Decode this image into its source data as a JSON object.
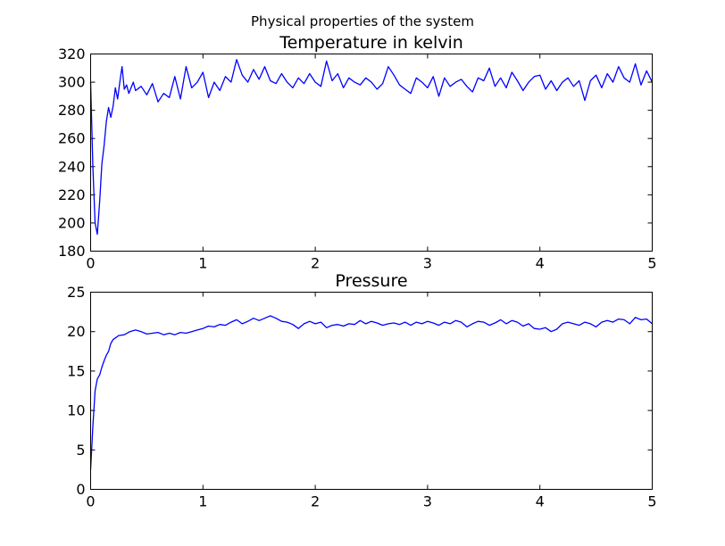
{
  "figure": {
    "suptitle": "Physical properties of the system",
    "line_color": "#0000ff"
  },
  "chart_data": [
    {
      "type": "line",
      "title": "Temperature in kelvin",
      "xlabel": "",
      "ylabel": "",
      "xlim": [
        0,
        5
      ],
      "ylim": [
        180,
        320
      ],
      "xticks": [
        "0",
        "1",
        "2",
        "3",
        "4",
        "5"
      ],
      "yticks": [
        "180",
        "200",
        "220",
        "240",
        "260",
        "280",
        "300",
        "320"
      ],
      "grid": false,
      "series": [
        {
          "x": [
            0,
            0.02,
            0.04,
            0.06,
            0.08,
            0.1,
            0.12,
            0.14,
            0.16,
            0.18,
            0.2,
            0.22,
            0.24,
            0.26,
            0.28,
            0.3,
            0.32,
            0.34,
            0.36,
            0.38,
            0.4,
            0.45,
            0.5,
            0.55,
            0.6,
            0.65,
            0.7,
            0.75,
            0.8,
            0.85,
            0.9,
            0.95,
            1.0,
            1.05,
            1.1,
            1.15,
            1.2,
            1.25,
            1.3,
            1.35,
            1.4,
            1.45,
            1.5,
            1.55,
            1.6,
            1.65,
            1.7,
            1.75,
            1.8,
            1.85,
            1.9,
            1.95,
            2.0,
            2.05,
            2.1,
            2.15,
            2.2,
            2.25,
            2.3,
            2.35,
            2.4,
            2.45,
            2.5,
            2.55,
            2.6,
            2.65,
            2.7,
            2.75,
            2.8,
            2.85,
            2.9,
            2.95,
            3.0,
            3.05,
            3.1,
            3.15,
            3.2,
            3.25,
            3.3,
            3.35,
            3.4,
            3.45,
            3.5,
            3.55,
            3.6,
            3.65,
            3.7,
            3.75,
            3.8,
            3.85,
            3.9,
            3.95,
            4.0,
            4.05,
            4.1,
            4.15,
            4.2,
            4.25,
            4.3,
            4.35,
            4.4,
            4.45,
            4.5,
            4.55,
            4.6,
            4.65,
            4.7,
            4.75,
            4.8,
            4.85,
            4.9,
            4.95,
            5.0
          ],
          "y": [
            300,
            240,
            200,
            192,
            215,
            242,
            255,
            272,
            282,
            275,
            283,
            296,
            288,
            300,
            311,
            295,
            298,
            292,
            296,
            300,
            294,
            297,
            291,
            299,
            286,
            292,
            289,
            304,
            288,
            311,
            296,
            300,
            307,
            289,
            300,
            294,
            304,
            300,
            316,
            305,
            300,
            309,
            302,
            311,
            301,
            299,
            306,
            300,
            296,
            303,
            299,
            306,
            300,
            297,
            315,
            301,
            306,
            296,
            303,
            300,
            298,
            303,
            300,
            295,
            299,
            311,
            305,
            298,
            295,
            292,
            303,
            300,
            296,
            304,
            290,
            303,
            297,
            300,
            302,
            297,
            293,
            303,
            301,
            310,
            297,
            303,
            296,
            307,
            301,
            294,
            300,
            304,
            305,
            295,
            301,
            294,
            300,
            303,
            297,
            301,
            287,
            301,
            305,
            296,
            306,
            300,
            311,
            303,
            300,
            313,
            298,
            308,
            300
          ]
        }
      ]
    },
    {
      "type": "line",
      "title": "Pressure",
      "xlabel": "",
      "ylabel": "",
      "xlim": [
        0,
        5
      ],
      "ylim": [
        0,
        25
      ],
      "xticks": [
        "0",
        "1",
        "2",
        "3",
        "4",
        "5"
      ],
      "yticks": [
        "0",
        "5",
        "10",
        "15",
        "20",
        "25"
      ],
      "grid": false,
      "series": [
        {
          "x": [
            0,
            0.02,
            0.04,
            0.06,
            0.08,
            0.1,
            0.12,
            0.14,
            0.16,
            0.18,
            0.2,
            0.22,
            0.25,
            0.3,
            0.35,
            0.4,
            0.45,
            0.5,
            0.55,
            0.6,
            0.65,
            0.7,
            0.75,
            0.8,
            0.85,
            0.9,
            0.95,
            1.0,
            1.05,
            1.1,
            1.15,
            1.2,
            1.25,
            1.3,
            1.35,
            1.4,
            1.45,
            1.5,
            1.55,
            1.6,
            1.65,
            1.7,
            1.75,
            1.8,
            1.85,
            1.9,
            1.95,
            2.0,
            2.05,
            2.1,
            2.15,
            2.2,
            2.25,
            2.3,
            2.35,
            2.4,
            2.45,
            2.5,
            2.55,
            2.6,
            2.65,
            2.7,
            2.75,
            2.8,
            2.85,
            2.9,
            2.95,
            3.0,
            3.05,
            3.1,
            3.15,
            3.2,
            3.25,
            3.3,
            3.35,
            3.4,
            3.45,
            3.5,
            3.55,
            3.6,
            3.65,
            3.7,
            3.75,
            3.8,
            3.85,
            3.9,
            3.95,
            4.0,
            4.05,
            4.1,
            4.15,
            4.2,
            4.25,
            4.3,
            4.35,
            4.4,
            4.45,
            4.5,
            4.55,
            4.6,
            4.65,
            4.7,
            4.75,
            4.8,
            4.85,
            4.9,
            4.95,
            5.0
          ],
          "y": [
            2.5,
            8.0,
            12.5,
            14.0,
            14.5,
            15.5,
            16.3,
            17.0,
            17.5,
            18.5,
            19.0,
            19.2,
            19.5,
            19.6,
            20.0,
            20.2,
            20.0,
            19.7,
            19.8,
            19.9,
            19.6,
            19.8,
            19.6,
            19.9,
            19.8,
            20.0,
            20.2,
            20.4,
            20.7,
            20.6,
            20.9,
            20.8,
            21.2,
            21.5,
            21.0,
            21.3,
            21.7,
            21.4,
            21.7,
            22.0,
            21.7,
            21.3,
            21.2,
            20.9,
            20.4,
            21.0,
            21.3,
            21.0,
            21.2,
            20.5,
            20.8,
            20.9,
            20.7,
            21.0,
            20.9,
            21.4,
            21.0,
            21.3,
            21.1,
            20.8,
            21.0,
            21.1,
            20.9,
            21.2,
            20.8,
            21.2,
            21.0,
            21.3,
            21.1,
            20.8,
            21.2,
            21.0,
            21.4,
            21.2,
            20.6,
            21.0,
            21.3,
            21.2,
            20.8,
            21.1,
            21.5,
            21.0,
            21.4,
            21.2,
            20.7,
            21.0,
            20.4,
            20.3,
            20.5,
            20.0,
            20.3,
            21.0,
            21.2,
            21.0,
            20.8,
            21.2,
            21.0,
            20.6,
            21.2,
            21.4,
            21.2,
            21.6,
            21.5,
            21.0,
            21.8,
            21.5,
            21.6,
            21.0
          ]
        }
      ]
    }
  ]
}
